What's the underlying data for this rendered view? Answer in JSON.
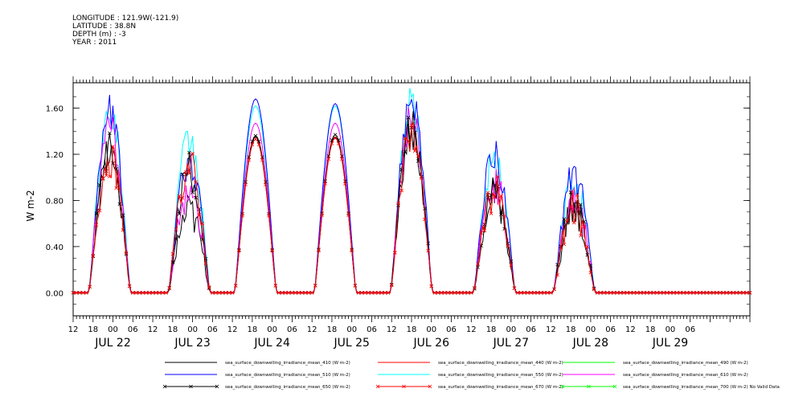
{
  "header": {
    "longitude": "LONGITUDE : 121.9W(-121.9)",
    "latitude": "LATITUDE : 38.8N",
    "depth": "DEPTH (m) : -3",
    "year": "YEAR : 2011"
  },
  "chart_data": {
    "type": "line",
    "ylabel": "W m-2",
    "xlabel": "",
    "ylim": [
      -0.2,
      1.82
    ],
    "y_ticks": [
      0.0,
      0.4,
      0.8,
      1.2,
      1.6
    ],
    "y_tick_labels": [
      "0.00",
      "0.40",
      "0.80",
      "1.20",
      "1.60"
    ],
    "x_range_hours": [
      0,
      204
    ],
    "x_tick_labels": [
      "12",
      "18",
      "00",
      "06",
      "12",
      "18",
      "00",
      "06",
      "12",
      "18",
      "00",
      "06",
      "12",
      "18",
      "00",
      "06",
      "12",
      "18",
      "00",
      "06",
      "12",
      "18",
      "00",
      "06",
      "12",
      "18",
      "00",
      "06",
      "12",
      "18",
      "00",
      "06"
    ],
    "date_labels": [
      "JUL 22",
      "JUL 23",
      "JUL 24",
      "JUL 25",
      "JUL 26",
      "JUL 27",
      "JUL 28",
      "JUL 29"
    ],
    "daily_peaks": [
      {
        "day": "JUL 22",
        "peak_hours_from_jul22_12": 11,
        "values": {
          "410": 1.2,
          "510": 1.55,
          "550": 1.6,
          "610": 1.4,
          "650": 1.25,
          "670": 1.18
        }
      },
      {
        "day": "JUL 23",
        "peak_hours_from_jul22_12": 35,
        "values": {
          "410": 0.7,
          "510": 1.15,
          "550": 1.3,
          "610": 0.9,
          "650": 1.05,
          "670": 1.1
        }
      },
      {
        "day": "JUL 24",
        "peak_hours_from_jul22_12": 55,
        "values": {
          "410": 1.35,
          "510": 1.68,
          "550": 1.62,
          "610": 1.47,
          "650": 1.36,
          "670": 1.33
        }
      },
      {
        "day": "JUL 25",
        "peak_hours_from_jul22_12": 79,
        "values": {
          "410": 1.35,
          "510": 1.64,
          "550": 1.62,
          "610": 1.47,
          "650": 1.37,
          "670": 1.34
        }
      },
      {
        "day": "JUL 26",
        "peak_hours_from_jul22_12": 102,
        "values": {
          "410": 1.4,
          "510": 1.72,
          "550": 1.62,
          "610": 1.52,
          "650": 1.42,
          "670": 1.38
        }
      },
      {
        "day": "JUL 27",
        "peak_hours_from_jul22_12": 127,
        "values": {
          "410": 0.85,
          "510": 1.2,
          "550": 1.15,
          "610": 0.95,
          "650": 0.9,
          "670": 0.88
        }
      },
      {
        "day": "JUL 28",
        "peak_hours_from_jul22_12": 151,
        "values": {
          "410": 0.72,
          "510": 1.02,
          "550": 0.98,
          "610": 0.83,
          "650": 0.75,
          "670": 0.73
        }
      }
    ],
    "series": [
      {
        "name": "sea_surface_downwelling_irradiance_mean_410 (W m-2)",
        "color": "#000000",
        "key": "410",
        "marker": "none"
      },
      {
        "name": "sea_surface_downwelling_irradiance_mean_440 (W m-2)",
        "color": "#ff0000",
        "key": "440",
        "marker": "none"
      },
      {
        "name": "sea_surface_downwelling_irradiance_mean_490 (W m-2)",
        "color": "#00ff00",
        "key": "490",
        "marker": "none"
      },
      {
        "name": "sea_surface_downwelling_irradiance_mean_510 (W m-2)",
        "color": "#0000ff",
        "key": "510",
        "marker": "none"
      },
      {
        "name": "sea_surface_downwelling_irradiance_mean_550 (W m-2)",
        "color": "#00ffff",
        "key": "550",
        "marker": "none"
      },
      {
        "name": "sea_surface_downwelling_irradiance_mean_610 (W m-2)",
        "color": "#ff00ff",
        "key": "610",
        "marker": "none"
      },
      {
        "name": "sea_surface_downwelling_irradiance_mean_650 (W m-2)",
        "color": "#000000",
        "key": "650",
        "marker": "x"
      },
      {
        "name": "sea_surface_downwelling_irradiance_mean_670 (W m-2)",
        "color": "#ff0000",
        "key": "670",
        "marker": "x"
      },
      {
        "name": "sea_surface_downwelling_irradiance_mean_700 (W m-2) No Valid Data",
        "color": "#00ff00",
        "key": "700",
        "marker": "x"
      }
    ],
    "grid": false,
    "legend_placement": "bottom"
  }
}
